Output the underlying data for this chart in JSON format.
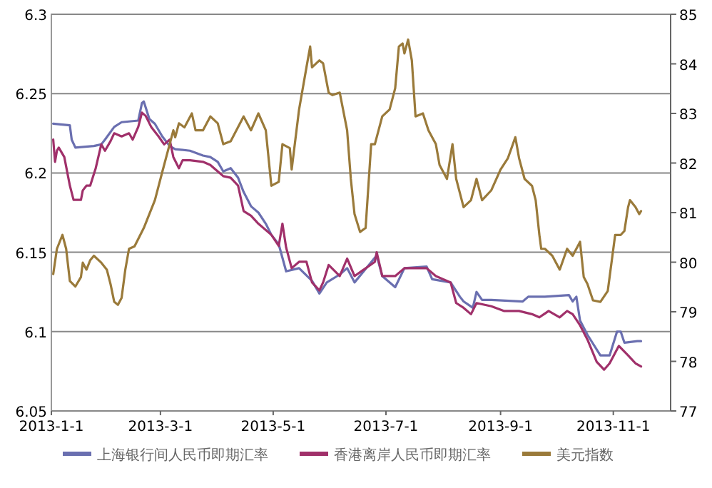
{
  "chart_data": {
    "type": "line",
    "grid": "y",
    "legend": "bottom",
    "xlim": [
      "2013-01-01",
      "2013-12-02"
    ],
    "xticks": [
      {
        "value": "2013-01-01",
        "label": "2013-1-1"
      },
      {
        "value": "2013-03-01",
        "label": "2013-3-1"
      },
      {
        "value": "2013-05-01",
        "label": "2013-5-1"
      },
      {
        "value": "2013-07-01",
        "label": "2013-7-1"
      },
      {
        "value": "2013-09-01",
        "label": "2013-9-1"
      },
      {
        "value": "2013-11-01",
        "label": "2013-11-1"
      }
    ],
    "ylim": [
      6.05,
      6.3
    ],
    "yticks": [
      6.05,
      6.1,
      6.15,
      6.2,
      6.25,
      6.3
    ],
    "y2lim": [
      77,
      85
    ],
    "y2ticks": [
      77,
      78,
      79,
      80,
      81,
      82,
      83,
      84,
      85
    ],
    "series": [
      {
        "name": "上海银行间人民币即期汇率",
        "color": "#6a6fb0",
        "x": [
          "2013-01-02",
          "2013-01-11",
          "2013-01-12",
          "2013-01-14",
          "2013-01-24",
          "2013-01-28",
          "2013-01-30",
          "2013-02-04",
          "2013-02-08",
          "2013-02-17",
          "2013-02-19",
          "2013-02-20",
          "2013-02-23",
          "2013-02-26",
          "2013-03-02",
          "2013-03-06",
          "2013-03-09",
          "2013-03-17",
          "2013-03-24",
          "2013-03-28",
          "2013-04-01",
          "2013-04-04",
          "2013-04-08",
          "2013-04-12",
          "2013-04-15",
          "2013-04-19",
          "2013-04-23",
          "2013-04-27",
          "2013-04-30",
          "2013-05-04",
          "2013-05-08",
          "2013-05-15",
          "2013-05-22",
          "2013-05-26",
          "2013-05-30",
          "2013-06-06",
          "2013-06-10",
          "2013-06-14",
          "2013-06-26",
          "2013-06-29",
          "2013-07-06",
          "2013-07-11",
          "2013-07-23",
          "2013-07-26",
          "2013-08-05",
          "2013-08-10",
          "2013-08-12",
          "2013-08-17",
          "2013-08-19",
          "2013-08-22",
          "2013-08-27",
          "2013-09-13",
          "2013-09-16",
          "2013-09-25",
          "2013-10-08",
          "2013-10-10",
          "2013-10-12",
          "2013-10-14",
          "2013-10-18",
          "2013-10-25",
          "2013-10-30",
          "2013-11-03",
          "2013-11-05",
          "2013-11-07",
          "2013-11-14",
          "2013-11-16"
        ],
        "values": [
          6.231,
          6.23,
          6.221,
          6.216,
          6.217,
          6.218,
          6.221,
          6.229,
          6.232,
          6.233,
          6.244,
          6.245,
          6.234,
          6.231,
          6.223,
          6.217,
          6.215,
          6.214,
          6.211,
          6.21,
          6.207,
          6.201,
          6.203,
          6.197,
          6.188,
          6.179,
          6.175,
          6.168,
          6.161,
          6.155,
          6.138,
          6.14,
          6.132,
          6.124,
          6.131,
          6.136,
          6.14,
          6.131,
          6.148,
          6.135,
          6.128,
          6.14,
          6.141,
          6.133,
          6.131,
          6.122,
          6.119,
          6.115,
          6.125,
          6.12,
          6.12,
          6.119,
          6.122,
          6.122,
          6.123,
          6.119,
          6.122,
          6.107,
          6.098,
          6.085,
          6.085,
          6.1,
          6.1,
          6.093,
          6.094,
          6.094
        ]
      },
      {
        "name": "香港离岸人民币即期汇率",
        "color": "#a0306a",
        "x": [
          "2013-01-02",
          "2013-01-03",
          "2013-01-04",
          "2013-01-05",
          "2013-01-08",
          "2013-01-11",
          "2013-01-13",
          "2013-01-17",
          "2013-01-18",
          "2013-01-20",
          "2013-01-22",
          "2013-01-25",
          "2013-01-28",
          "2013-01-30",
          "2013-02-02",
          "2013-02-04",
          "2013-02-08",
          "2013-02-12",
          "2013-02-14",
          "2013-02-17",
          "2013-02-19",
          "2013-02-21",
          "2013-02-24",
          "2013-02-28",
          "2013-03-03",
          "2013-03-06",
          "2013-03-08",
          "2013-03-11",
          "2013-03-13",
          "2013-03-17",
          "2013-03-24",
          "2013-03-28",
          "2013-04-01",
          "2013-04-04",
          "2013-04-08",
          "2013-04-12",
          "2013-04-15",
          "2013-04-19",
          "2013-04-23",
          "2013-04-30",
          "2013-05-04",
          "2013-05-06",
          "2013-05-08",
          "2013-05-11",
          "2013-05-15",
          "2013-05-19",
          "2013-05-22",
          "2013-05-26",
          "2013-05-28",
          "2013-05-31",
          "2013-06-06",
          "2013-06-10",
          "2013-06-14",
          "2013-06-25",
          "2013-06-26",
          "2013-06-29",
          "2013-07-06",
          "2013-07-11",
          "2013-07-23",
          "2013-07-28",
          "2013-08-05",
          "2013-08-08",
          "2013-08-12",
          "2013-08-16",
          "2013-08-19",
          "2013-08-27",
          "2013-09-03",
          "2013-09-11",
          "2013-09-18",
          "2013-09-22",
          "2013-09-27",
          "2013-10-03",
          "2013-10-07",
          "2013-10-10",
          "2013-10-14",
          "2013-10-18",
          "2013-10-23",
          "2013-10-27",
          "2013-10-30",
          "2013-11-04",
          "2013-11-09",
          "2013-11-13",
          "2013-11-16"
        ],
        "values": [
          6.221,
          6.207,
          6.214,
          6.216,
          6.21,
          6.192,
          6.183,
          6.183,
          6.189,
          6.192,
          6.192,
          6.203,
          6.218,
          6.214,
          6.22,
          6.225,
          6.223,
          6.225,
          6.221,
          6.229,
          6.238,
          6.236,
          6.229,
          6.223,
          6.218,
          6.221,
          6.21,
          6.203,
          6.208,
          6.208,
          6.207,
          6.205,
          6.201,
          6.198,
          6.197,
          6.192,
          6.176,
          6.173,
          6.168,
          6.161,
          6.154,
          6.168,
          6.153,
          6.14,
          6.144,
          6.144,
          6.131,
          6.126,
          6.131,
          6.142,
          6.135,
          6.146,
          6.135,
          6.144,
          6.15,
          6.135,
          6.135,
          6.14,
          6.14,
          6.135,
          6.131,
          6.118,
          6.115,
          6.111,
          6.118,
          6.116,
          6.113,
          6.113,
          6.111,
          6.109,
          6.113,
          6.109,
          6.113,
          6.111,
          6.104,
          6.095,
          6.081,
          6.076,
          6.08,
          6.091,
          6.085,
          6.08,
          6.078
        ]
      },
      {
        "name": "美元指数",
        "color": "#9a7a3a",
        "axis": "y2",
        "x": [
          "2013-01-02",
          "2013-01-04",
          "2013-01-07",
          "2013-01-09",
          "2013-01-11",
          "2013-01-14",
          "2013-01-17",
          "2013-01-18",
          "2013-01-20",
          "2013-01-22",
          "2013-01-24",
          "2013-01-28",
          "2013-01-31",
          "2013-02-02",
          "2013-02-04",
          "2013-02-06",
          "2013-02-08",
          "2013-02-10",
          "2013-02-12",
          "2013-02-15",
          "2013-02-20",
          "2013-02-23",
          "2013-02-26",
          "2013-03-02",
          "2013-03-06",
          "2013-03-08",
          "2013-03-09",
          "2013-03-11",
          "2013-03-14",
          "2013-03-18",
          "2013-03-20",
          "2013-03-24",
          "2013-03-28",
          "2013-04-01",
          "2013-04-04",
          "2013-04-08",
          "2013-04-15",
          "2013-04-19",
          "2013-04-23",
          "2013-04-27",
          "2013-04-30",
          "2013-05-04",
          "2013-05-06",
          "2013-05-10",
          "2013-05-11",
          "2013-05-15",
          "2013-05-19",
          "2013-05-21",
          "2013-05-22",
          "2013-05-26",
          "2013-05-28",
          "2013-05-31",
          "2013-06-02",
          "2013-06-06",
          "2013-06-10",
          "2013-06-12",
          "2013-06-14",
          "2013-06-17",
          "2013-06-20",
          "2013-06-23",
          "2013-06-25",
          "2013-06-29",
          "2013-07-03",
          "2013-07-06",
          "2013-07-08",
          "2013-07-10",
          "2013-07-11",
          "2013-07-13",
          "2013-07-15",
          "2013-07-17",
          "2013-07-21",
          "2013-07-24",
          "2013-07-28",
          "2013-07-30",
          "2013-08-03",
          "2013-08-06",
          "2013-08-08",
          "2013-08-12",
          "2013-08-16",
          "2013-08-19",
          "2013-08-22",
          "2013-08-27",
          "2013-09-01",
          "2013-09-05",
          "2013-09-09",
          "2013-09-11",
          "2013-09-14",
          "2013-09-18",
          "2013-09-20",
          "2013-09-22",
          "2013-09-23",
          "2013-09-25",
          "2013-09-29",
          "2013-10-03",
          "2013-10-07",
          "2013-10-10",
          "2013-10-14",
          "2013-10-16",
          "2013-10-18",
          "2013-10-21",
          "2013-10-25",
          "2013-10-29",
          "2013-11-02",
          "2013-11-05",
          "2013-11-07",
          "2013-11-09",
          "2013-11-10",
          "2013-11-13",
          "2013-11-15",
          "2013-11-16"
        ],
        "values": [
          79.76,
          80.27,
          80.55,
          80.27,
          79.62,
          79.51,
          79.7,
          79.99,
          79.85,
          80.04,
          80.13,
          79.99,
          79.85,
          79.56,
          79.2,
          79.14,
          79.28,
          79.85,
          80.27,
          80.32,
          80.69,
          80.97,
          81.25,
          81.82,
          82.38,
          82.66,
          82.52,
          82.8,
          82.72,
          83.0,
          82.66,
          82.66,
          82.94,
          82.8,
          82.38,
          82.44,
          82.94,
          82.66,
          83.0,
          82.66,
          81.54,
          81.62,
          82.38,
          82.3,
          81.87,
          83.08,
          83.93,
          84.35,
          83.93,
          84.07,
          84.01,
          83.42,
          83.37,
          83.42,
          82.66,
          81.68,
          80.97,
          80.61,
          80.69,
          82.38,
          82.38,
          82.94,
          83.08,
          83.51,
          84.35,
          84.41,
          84.21,
          84.49,
          84.07,
          82.94,
          83.0,
          82.66,
          82.38,
          81.96,
          81.68,
          82.38,
          81.68,
          81.11,
          81.25,
          81.68,
          81.25,
          81.45,
          81.87,
          82.1,
          82.52,
          82.1,
          81.68,
          81.54,
          81.25,
          80.55,
          80.27,
          80.27,
          80.13,
          79.85,
          80.27,
          80.13,
          80.41,
          79.7,
          79.56,
          79.23,
          79.2,
          79.42,
          80.55,
          80.55,
          80.63,
          81.11,
          81.25,
          81.11,
          80.97,
          81.03
        ]
      }
    ]
  }
}
